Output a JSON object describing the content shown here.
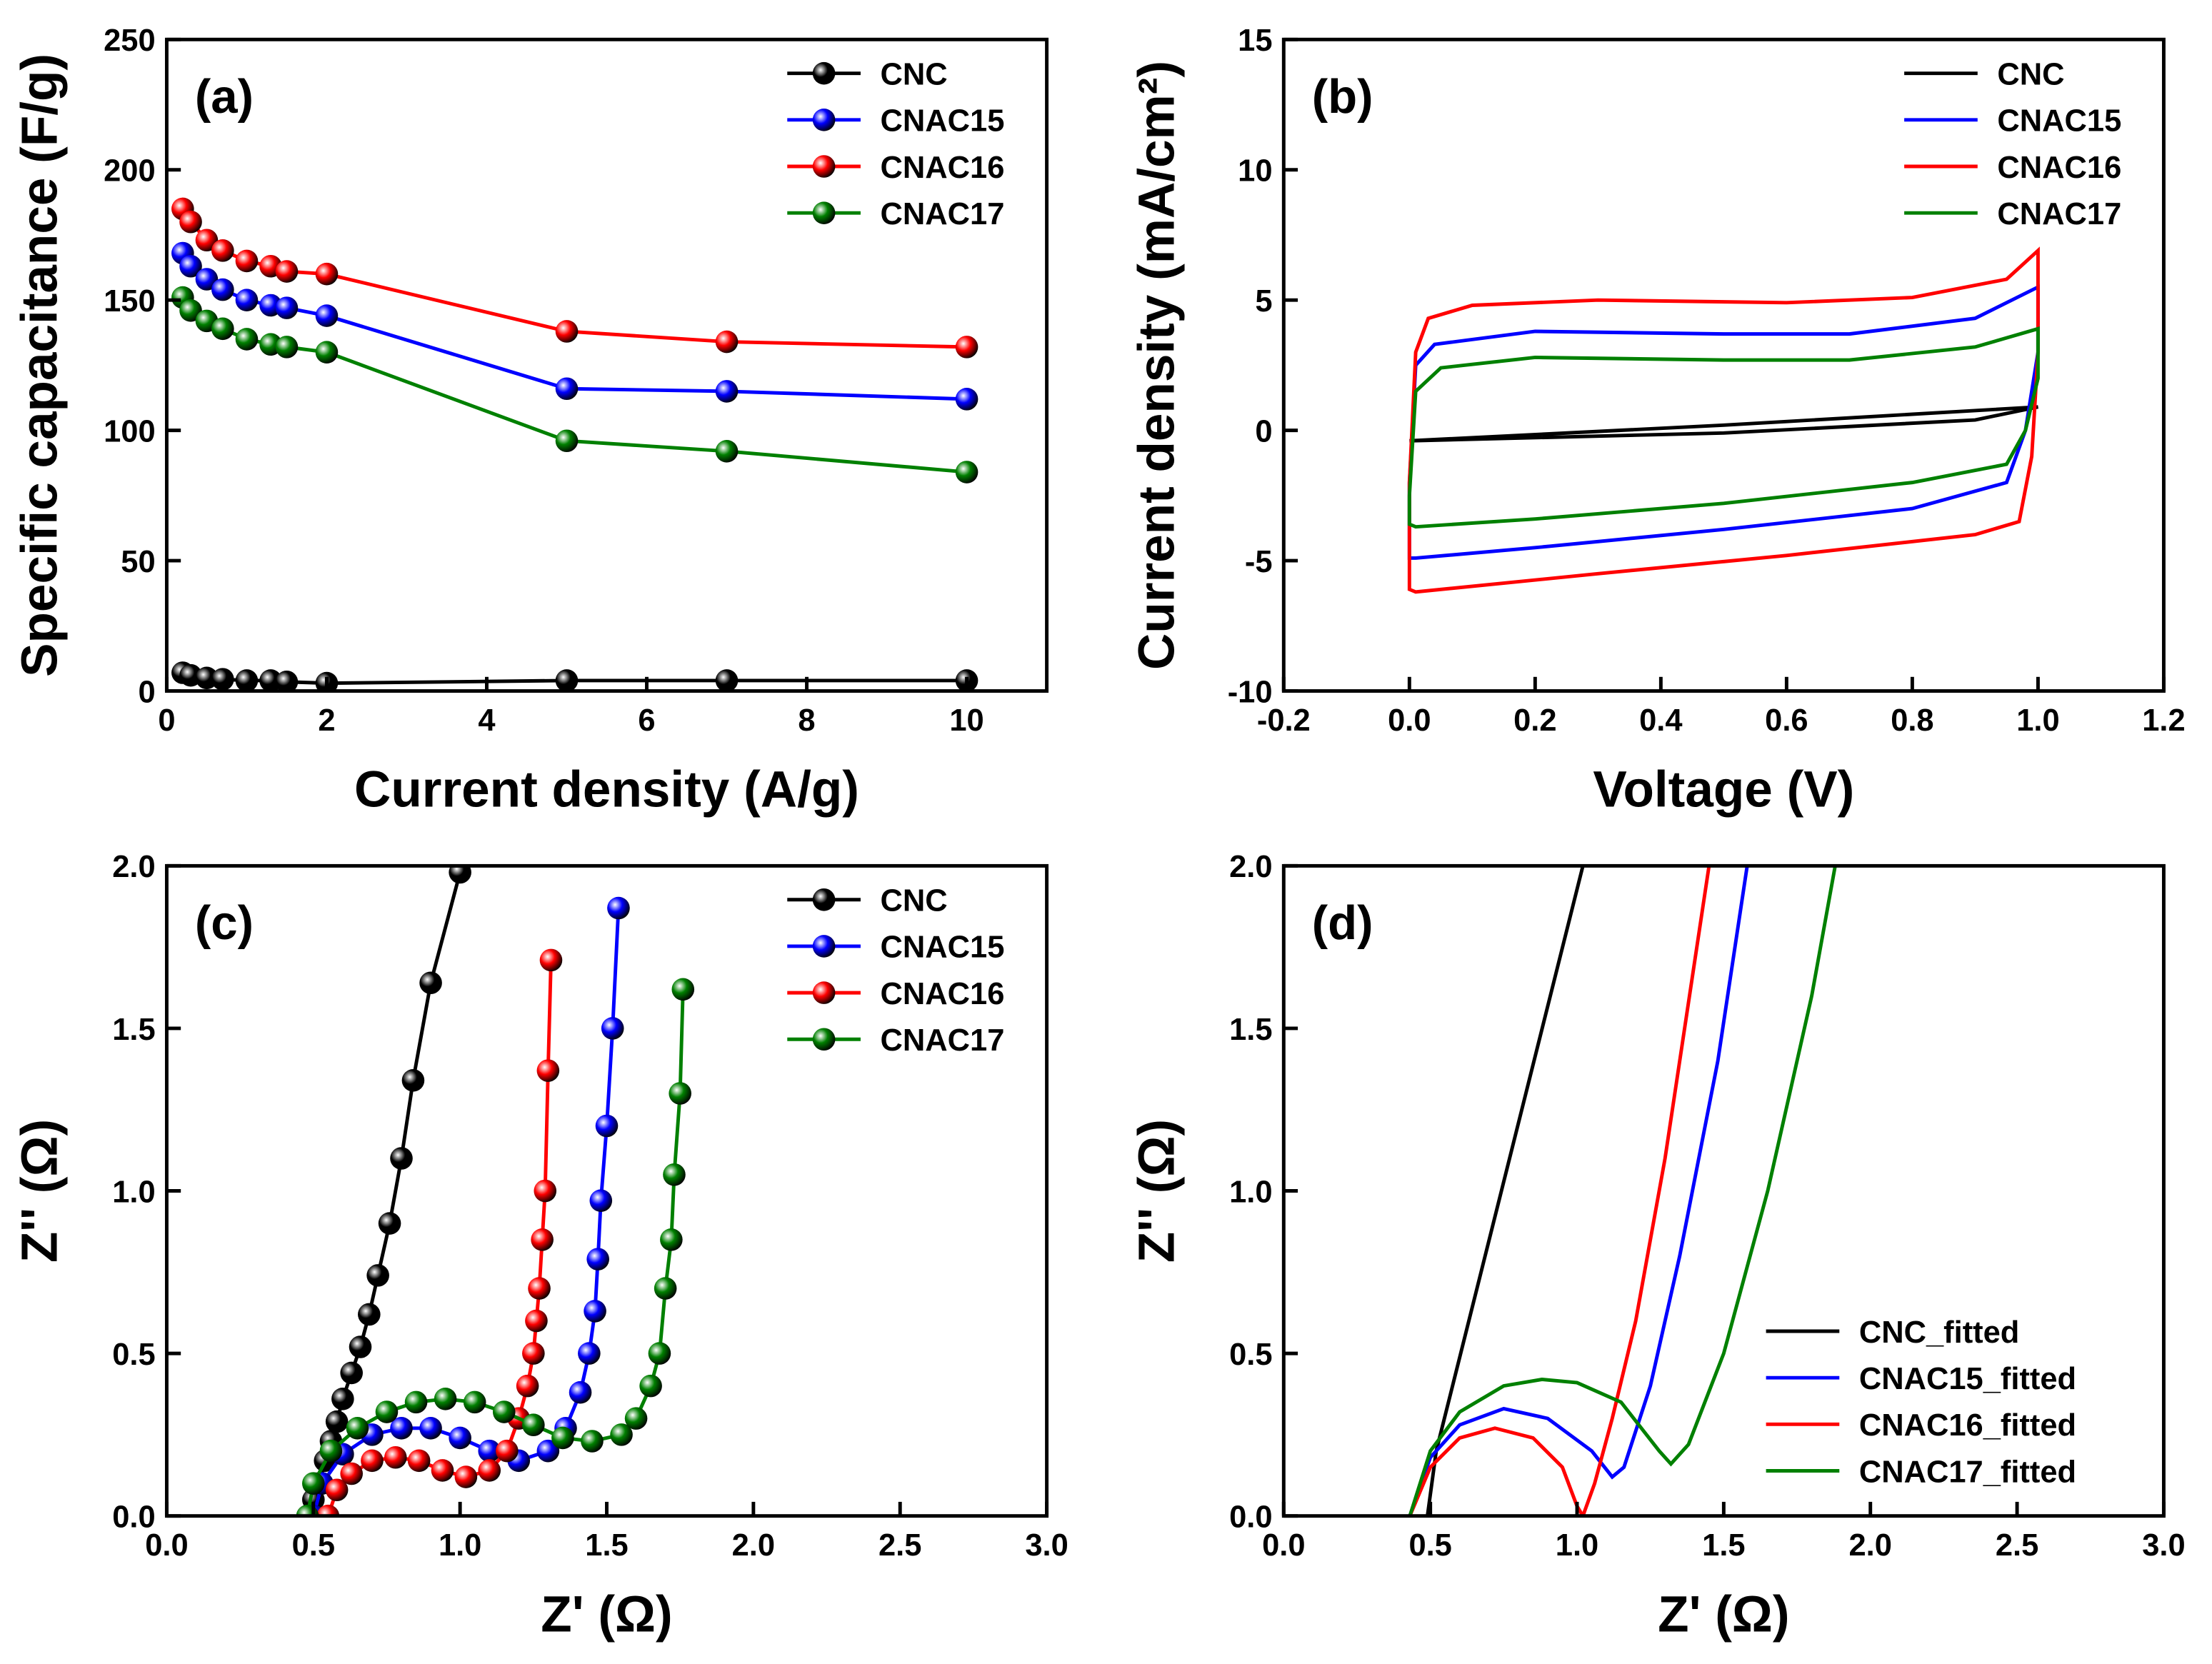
{
  "chart_data": [
    {
      "type": "line",
      "label": "(a)",
      "xlabel": "Current density (A/g)",
      "ylabel": "Specific capacitance (F/g)",
      "xlim": [
        0,
        11
      ],
      "xticks": [
        0,
        2,
        4,
        6,
        8,
        10
      ],
      "ylim": [
        0,
        250
      ],
      "yticks": [
        0,
        50,
        100,
        150,
        200,
        250
      ],
      "legend": "upper right",
      "markers": true,
      "x": [
        0.2,
        0.3,
        0.5,
        0.7,
        1,
        1.3,
        1.5,
        2,
        5,
        7,
        10
      ],
      "series": [
        {
          "name": "CNC",
          "color": "#000000",
          "values": [
            7,
            6,
            5,
            4.5,
            4,
            4,
            3.5,
            3,
            4,
            4,
            4
          ]
        },
        {
          "name": "CNAC15",
          "color": "#0000ff",
          "values": [
            168,
            163,
            158,
            154,
            150,
            148,
            147,
            144,
            116,
            115,
            112
          ]
        },
        {
          "name": "CNAC16",
          "color": "#ff0000",
          "values": [
            185,
            180,
            173,
            169,
            165,
            163,
            161,
            160,
            138,
            134,
            132
          ]
        },
        {
          "name": "CNAC17",
          "color": "#008000",
          "values": [
            151,
            146,
            142,
            139,
            135,
            133,
            132,
            130,
            96,
            92,
            84
          ]
        }
      ]
    },
    {
      "type": "line",
      "label": "(b)",
      "xlabel": "Voltage (V)",
      "ylabel": "Current density (mA/cm²)",
      "xlim": [
        -0.2,
        1.2
      ],
      "xticks": [
        -0.2,
        {
          "value": 0,
          "label": "0.0"
        },
        0.2,
        0.4,
        0.6,
        0.8,
        {
          "value": 1,
          "label": "1.0"
        },
        1.2
      ],
      "ylim": [
        -10,
        15
      ],
      "yticks": [
        -10,
        -5,
        0,
        5,
        10,
        15
      ],
      "legend": "upper right",
      "markers": false,
      "series": [
        {
          "name": "CNC",
          "color": "#000000",
          "x": [
            0,
            0.5,
            1,
            0.9,
            0.5,
            0
          ],
          "values": [
            -0.4,
            0.2,
            0.9,
            0.4,
            -0.1,
            -0.4
          ]
        },
        {
          "name": "CNAC15",
          "color": "#0000ff",
          "x": [
            0,
            0.01,
            0.04,
            0.2,
            0.5,
            0.7,
            0.9,
            1,
            1,
            0.98,
            0.95,
            0.8,
            0.5,
            0.2,
            0.01,
            0,
            0
          ],
          "values": [
            -2,
            2.5,
            3.3,
            3.8,
            3.7,
            3.7,
            4.3,
            5.5,
            3,
            0,
            -2,
            -3,
            -3.8,
            -4.5,
            -4.9,
            -4.9,
            -2
          ]
        },
        {
          "name": "CNAC16",
          "color": "#ff0000",
          "x": [
            0,
            0.01,
            0.03,
            0.1,
            0.3,
            0.6,
            0.8,
            0.95,
            1,
            1,
            0.99,
            0.97,
            0.9,
            0.6,
            0.3,
            0.01,
            0,
            0
          ],
          "values": [
            -2,
            3,
            4.3,
            4.8,
            5,
            4.9,
            5.1,
            5.8,
            6.9,
            3,
            -1,
            -3.5,
            -4,
            -4.8,
            -5.5,
            -6.2,
            -6.1,
            -2
          ]
        },
        {
          "name": "CNAC17",
          "color": "#008000",
          "x": [
            0,
            0.01,
            0.05,
            0.2,
            0.5,
            0.7,
            0.9,
            1,
            1,
            0.98,
            0.95,
            0.8,
            0.5,
            0.2,
            0.01,
            0,
            0
          ],
          "values": [
            -2.5,
            1.5,
            2.4,
            2.8,
            2.7,
            2.7,
            3.2,
            3.9,
            2,
            0,
            -1.3,
            -2,
            -2.8,
            -3.4,
            -3.7,
            -3.6,
            -2.5
          ]
        }
      ]
    },
    {
      "type": "line",
      "label": "(c)",
      "xlabel": "Z' (Ω)",
      "ylabel": "Z'' (Ω)",
      "xlim": [
        0,
        3
      ],
      "xticks": [
        {
          "value": 0,
          "label": "0.0"
        },
        0.5,
        {
          "value": 1,
          "label": "1.0"
        },
        1.5,
        {
          "value": 2,
          "label": "2.0"
        },
        2.5,
        {
          "value": 3,
          "label": "3.0"
        }
      ],
      "ylim": [
        0,
        2
      ],
      "yticks": [
        {
          "value": 0,
          "label": "0.0"
        },
        0.5,
        {
          "value": 1,
          "label": "1.0"
        },
        1.5,
        {
          "value": 2,
          "label": "2.0"
        }
      ],
      "legend": "upper right",
      "markers": true,
      "series": [
        {
          "name": "CNC",
          "color": "#000000",
          "x": [
            0.48,
            0.5,
            0.52,
            0.54,
            0.56,
            0.58,
            0.6,
            0.63,
            0.66,
            0.69,
            0.72,
            0.76,
            0.8,
            0.84,
            0.9,
            1.0
          ],
          "values": [
            0,
            0.05,
            0.1,
            0.17,
            0.23,
            0.29,
            0.36,
            0.44,
            0.52,
            0.62,
            0.74,
            0.9,
            1.1,
            1.34,
            1.64,
            1.98
          ]
        },
        {
          "name": "CNAC15",
          "color": "#0000ff",
          "x": [
            0.5,
            0.53,
            0.6,
            0.7,
            0.8,
            0.9,
            1.0,
            1.1,
            1.2,
            1.3,
            1.36,
            1.41,
            1.44,
            1.46,
            1.47,
            1.48,
            1.5,
            1.52,
            1.54
          ],
          "values": [
            0,
            0.1,
            0.19,
            0.25,
            0.27,
            0.27,
            0.24,
            0.2,
            0.17,
            0.2,
            0.27,
            0.38,
            0.5,
            0.63,
            0.79,
            0.97,
            1.2,
            1.5,
            1.87
          ]
        },
        {
          "name": "CNAC16",
          "color": "#ff0000",
          "x": [
            0.55,
            0.58,
            0.63,
            0.7,
            0.78,
            0.86,
            0.94,
            1.02,
            1.1,
            1.16,
            1.2,
            1.23,
            1.25,
            1.26,
            1.27,
            1.28,
            1.29,
            1.3,
            1.31
          ],
          "values": [
            0,
            0.08,
            0.13,
            0.17,
            0.18,
            0.17,
            0.14,
            0.12,
            0.14,
            0.2,
            0.3,
            0.4,
            0.5,
            0.6,
            0.7,
            0.85,
            1.0,
            1.37,
            1.71
          ]
        },
        {
          "name": "CNAC17",
          "color": "#008000",
          "x": [
            0.48,
            0.5,
            0.56,
            0.65,
            0.75,
            0.85,
            0.95,
            1.05,
            1.15,
            1.25,
            1.35,
            1.45,
            1.55,
            1.6,
            1.65,
            1.68,
            1.7,
            1.72,
            1.73,
            1.75,
            1.76
          ],
          "values": [
            0,
            0.1,
            0.2,
            0.27,
            0.32,
            0.35,
            0.36,
            0.35,
            0.32,
            0.28,
            0.24,
            0.23,
            0.25,
            0.3,
            0.4,
            0.5,
            0.7,
            0.85,
            1.05,
            1.3,
            1.62
          ]
        }
      ]
    },
    {
      "type": "line",
      "label": "(d)",
      "xlabel": "Z' (Ω)",
      "ylabel": "Z'' (Ω)",
      "xlim": [
        0,
        3
      ],
      "xticks": [
        {
          "value": 0,
          "label": "0.0"
        },
        0.5,
        {
          "value": 1,
          "label": "1.0"
        },
        1.5,
        {
          "value": 2,
          "label": "2.0"
        },
        2.5,
        {
          "value": 3,
          "label": "3.0"
        }
      ],
      "ylim": [
        0,
        2
      ],
      "yticks": [
        {
          "value": 0,
          "label": "0.0"
        },
        0.5,
        {
          "value": 1,
          "label": "1.0"
        },
        1.5,
        {
          "value": 2,
          "label": "2.0"
        }
      ],
      "legend": "lower right",
      "markers": false,
      "series": [
        {
          "name": "CNC_fitted",
          "color": "#000000",
          "x": [
            0.49,
            0.52,
            1.02
          ],
          "values": [
            0,
            0.2,
            2
          ]
        },
        {
          "name": "CNAC15_fitted",
          "color": "#0000ff",
          "x": [
            0.43,
            0.5,
            0.6,
            0.75,
            0.9,
            1.05,
            1.12,
            1.16,
            1.25,
            1.35,
            1.48,
            1.58
          ],
          "values": [
            0,
            0.18,
            0.28,
            0.33,
            0.3,
            0.2,
            0.12,
            0.15,
            0.4,
            0.8,
            1.4,
            2
          ]
        },
        {
          "name": "CNAC16_fitted",
          "color": "#ff0000",
          "x": [
            0.43,
            0.5,
            0.6,
            0.72,
            0.85,
            0.95,
            1.0,
            1.02,
            1.06,
            1.12,
            1.2,
            1.3,
            1.45
          ],
          "values": [
            0,
            0.15,
            0.24,
            0.27,
            0.24,
            0.15,
            0.03,
            0,
            0.1,
            0.3,
            0.6,
            1.1,
            2
          ]
        },
        {
          "name": "CNAC17_fitted",
          "color": "#008000",
          "x": [
            0.43,
            0.5,
            0.6,
            0.75,
            0.88,
            1.0,
            1.15,
            1.28,
            1.32,
            1.38,
            1.5,
            1.65,
            1.8,
            1.88
          ],
          "values": [
            0,
            0.2,
            0.32,
            0.4,
            0.42,
            0.41,
            0.35,
            0.2,
            0.16,
            0.22,
            0.5,
            1,
            1.6,
            2
          ]
        }
      ]
    }
  ]
}
